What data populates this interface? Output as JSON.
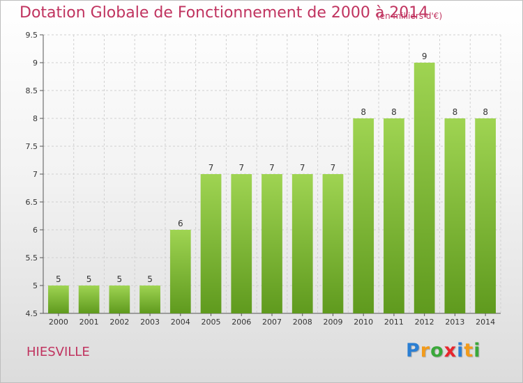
{
  "title": "Dotation Globale de Fonctionnement de 2000 à 2014",
  "unit_note": "(en milliers d'€)",
  "commune": "HIESVILLE",
  "logo": {
    "letters": [
      "P",
      "r",
      "o",
      "x",
      "i",
      "t",
      "i"
    ],
    "colors": [
      "#2b7fd3",
      "#f29b1b",
      "#3aa83a",
      "#e8262d",
      "#2b7fd3",
      "#f29b1b",
      "#3aa83a"
    ]
  },
  "colors": {
    "bar_top": "#9fd452",
    "bar_bottom": "#5f9a1e",
    "grid": "#d0d0d0",
    "text_accent": "#c0335f"
  },
  "chart_data": {
    "type": "bar",
    "categories": [
      "2000",
      "2001",
      "2002",
      "2003",
      "2004",
      "2005",
      "2006",
      "2007",
      "2008",
      "2009",
      "2010",
      "2011",
      "2012",
      "2013",
      "2014"
    ],
    "values": [
      5,
      5,
      5,
      5,
      6,
      7,
      7,
      7,
      7,
      7,
      8,
      8,
      9,
      8,
      8
    ],
    "value_labels": [
      "5",
      "5",
      "5",
      "5",
      "6",
      "7",
      "7",
      "7",
      "7",
      "7",
      "8",
      "8",
      "9",
      "8",
      "8"
    ],
    "ylim": [
      4.5,
      9.5
    ],
    "yticks": [
      4.5,
      5,
      5.5,
      6,
      6.5,
      7,
      7.5,
      8,
      8.5,
      9,
      9.5
    ],
    "ytick_labels": [
      "4.5",
      "5",
      "5.5",
      "6",
      "6.5",
      "7",
      "7.5",
      "8",
      "8.5",
      "9",
      "9.5"
    ],
    "grid": true
  }
}
